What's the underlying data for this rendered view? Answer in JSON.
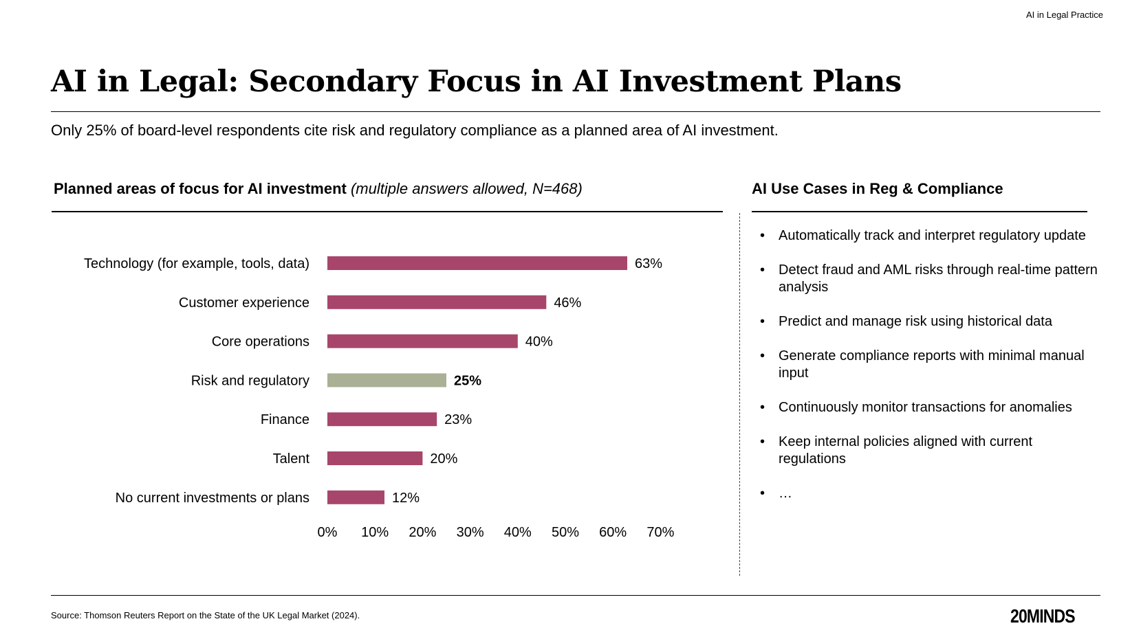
{
  "header_label": "AI in Legal Practice",
  "title": "AI in Legal: Secondary Focus in AI Investment Plans",
  "subtitle": "Only 25% of board-level respondents cite risk and regulatory compliance as a planned area of AI investment.",
  "left_section": {
    "heading": "Planned areas of focus for AI investment",
    "note": "(multiple answers allowed, N=468)"
  },
  "right_section": {
    "heading": "AI Use Cases in Reg & Compliance",
    "bullet": "•",
    "items": [
      "Automatically track and interpret regulatory update",
      "Detect fraud and AML risks through real-time pattern analysis",
      "Predict and manage risk using historical data",
      "Generate compliance reports with minimal manual input",
      "Continuously monitor transactions for anomalies",
      "Keep internal policies aligned with current regulations",
      "…"
    ]
  },
  "chart_data": {
    "type": "bar",
    "orientation": "horizontal",
    "categories": [
      "Technology (for example, tools, data)",
      "Customer experience",
      "Core operations",
      "Risk and regulatory",
      "Finance",
      "Talent",
      "No current investments or plans"
    ],
    "values": [
      63,
      46,
      40,
      25,
      23,
      20,
      12
    ],
    "data_labels": [
      "63%",
      "46%",
      "40%",
      "25%",
      "23%",
      "20%",
      "12%"
    ],
    "highlight_index": 3,
    "x_ticks": [
      "0%",
      "10%",
      "20%",
      "30%",
      "40%",
      "50%",
      "60%",
      "70%"
    ],
    "xlim": [
      0,
      70
    ],
    "grid": false,
    "colors": {
      "bar": "#a8456b",
      "highlight": "#a9b096"
    }
  },
  "footer": {
    "source": "Source: Thomson Reuters Report on the State of the UK Legal Market (2024).",
    "logo": "20MINDS"
  }
}
